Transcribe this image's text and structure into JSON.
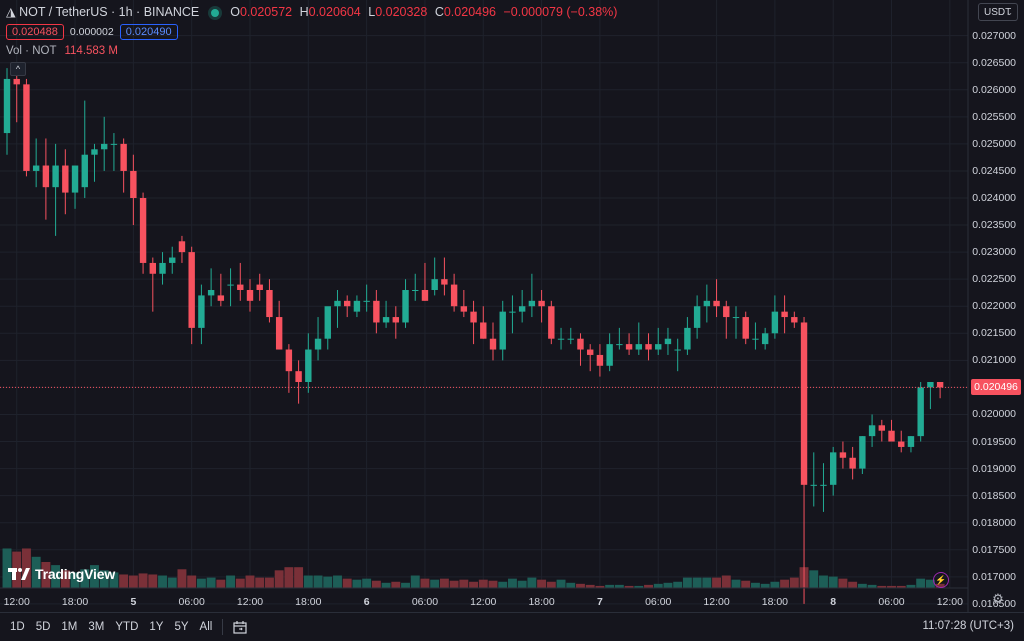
{
  "header": {
    "symbol": "NOT / TetherUS · 1h · BINANCE",
    "open_label": "O",
    "open": "0.020572",
    "high_label": "H",
    "high": "0.020604",
    "low_label": "L",
    "low": "0.020328",
    "close_label": "C",
    "close": "0.020496",
    "change": "−0.000079 (−0.38%)"
  },
  "bid": "0.020488",
  "spread": "0.000002",
  "ask": "0.020490",
  "volume": {
    "label": "Vol · NOT",
    "value": "114.583 M"
  },
  "currency": "USDT",
  "last_price_label": "0.020496",
  "brand": "TradingView",
  "time_ranges": [
    "1D",
    "5D",
    "1M",
    "3M",
    "YTD",
    "1Y",
    "5Y",
    "All"
  ],
  "clock": "11:07:28 (UTC+3)",
  "colors": {
    "up": "#22ab94",
    "down": "#f7525f",
    "background": "#15151d",
    "up_volume": "#1d5e57",
    "down_volume": "#7a3038"
  },
  "chart_data": {
    "type": "candlestick",
    "y_ticks": [
      "0.027000",
      "0.026500",
      "0.026000",
      "0.025500",
      "0.025000",
      "0.024500",
      "0.024000",
      "0.023500",
      "0.023000",
      "0.022500",
      "0.022000",
      "0.021500",
      "0.021000",
      "0.020500",
      "0.020000",
      "0.019500",
      "0.019000",
      "0.018500",
      "0.018000",
      "0.017500",
      "0.017000",
      "0.016500"
    ],
    "ylim": [
      0.01635,
      0.0274
    ],
    "x_ticks": [
      {
        "label": "12:00",
        "i": 1,
        "day": false
      },
      {
        "label": "18:00",
        "i": 7,
        "day": false
      },
      {
        "label": "5",
        "i": 13,
        "day": true
      },
      {
        "label": "06:00",
        "i": 19,
        "day": false
      },
      {
        "label": "12:00",
        "i": 25,
        "day": false
      },
      {
        "label": "18:00",
        "i": 31,
        "day": false
      },
      {
        "label": "6",
        "i": 37,
        "day": true
      },
      {
        "label": "06:00",
        "i": 43,
        "day": false
      },
      {
        "label": "12:00",
        "i": 49,
        "day": false
      },
      {
        "label": "18:00",
        "i": 55,
        "day": false
      },
      {
        "label": "7",
        "i": 61,
        "day": true
      },
      {
        "label": "06:00",
        "i": 67,
        "day": false
      },
      {
        "label": "12:00",
        "i": 73,
        "day": false
      },
      {
        "label": "18:00",
        "i": 79,
        "day": false
      },
      {
        "label": "8",
        "i": 85,
        "day": true
      },
      {
        "label": "06:00",
        "i": 91,
        "day": false
      },
      {
        "label": "12:00",
        "i": 97,
        "day": false
      }
    ],
    "ohlc": [
      [
        0.0252,
        0.0264,
        0.0248,
        0.0262
      ],
      [
        0.0262,
        0.0265,
        0.0254,
        0.0261
      ],
      [
        0.0261,
        0.0262,
        0.0244,
        0.0245
      ],
      [
        0.0245,
        0.0251,
        0.0242,
        0.0246
      ],
      [
        0.0246,
        0.0251,
        0.0236,
        0.0242
      ],
      [
        0.0242,
        0.025,
        0.0233,
        0.0246
      ],
      [
        0.0246,
        0.0249,
        0.0237,
        0.0241
      ],
      [
        0.0241,
        0.0246,
        0.0238,
        0.0246
      ],
      [
        0.0242,
        0.0258,
        0.024,
        0.0248
      ],
      [
        0.0248,
        0.025,
        0.0243,
        0.0249
      ],
      [
        0.0249,
        0.0255,
        0.0245,
        0.025
      ],
      [
        0.025,
        0.0252,
        0.0245,
        0.025
      ],
      [
        0.025,
        0.0251,
        0.0241,
        0.0245
      ],
      [
        0.0245,
        0.0248,
        0.0235,
        0.024
      ],
      [
        0.024,
        0.0241,
        0.0226,
        0.0228
      ],
      [
        0.0228,
        0.0229,
        0.0219,
        0.0226
      ],
      [
        0.0226,
        0.023,
        0.0224,
        0.0228
      ],
      [
        0.0228,
        0.0231,
        0.0226,
        0.0229
      ],
      [
        0.0232,
        0.0233,
        0.0228,
        0.023
      ],
      [
        0.023,
        0.0231,
        0.0213,
        0.0216
      ],
      [
        0.0216,
        0.0224,
        0.0213,
        0.0222
      ],
      [
        0.0222,
        0.0227,
        0.022,
        0.0223
      ],
      [
        0.0222,
        0.0226,
        0.022,
        0.0221
      ],
      [
        0.0224,
        0.0227,
        0.022,
        0.0224
      ],
      [
        0.0224,
        0.0228,
        0.0221,
        0.0223
      ],
      [
        0.0223,
        0.0225,
        0.0219,
        0.0221
      ],
      [
        0.0224,
        0.0226,
        0.0221,
        0.0223
      ],
      [
        0.0223,
        0.0225,
        0.0217,
        0.0218
      ],
      [
        0.0218,
        0.0221,
        0.0212,
        0.0212
      ],
      [
        0.0212,
        0.0213,
        0.0204,
        0.0208
      ],
      [
        0.0208,
        0.021,
        0.0202,
        0.0206
      ],
      [
        0.0206,
        0.0215,
        0.0204,
        0.0212
      ],
      [
        0.0212,
        0.0218,
        0.021,
        0.0214
      ],
      [
        0.0214,
        0.0219,
        0.0212,
        0.022
      ],
      [
        0.022,
        0.0223,
        0.0216,
        0.0221
      ],
      [
        0.0221,
        0.0222,
        0.0218,
        0.022
      ],
      [
        0.0219,
        0.0222,
        0.0218,
        0.0221
      ],
      [
        0.0221,
        0.0224,
        0.0219,
        0.0221
      ],
      [
        0.0221,
        0.0223,
        0.0215,
        0.0217
      ],
      [
        0.0217,
        0.0221,
        0.0216,
        0.0218
      ],
      [
        0.0218,
        0.022,
        0.0214,
        0.0217
      ],
      [
        0.0217,
        0.0225,
        0.0216,
        0.0223
      ],
      [
        0.0223,
        0.0226,
        0.0221,
        0.0223
      ],
      [
        0.0223,
        0.0228,
        0.0221,
        0.0221
      ],
      [
        0.0223,
        0.0229,
        0.0222,
        0.0225
      ],
      [
        0.0225,
        0.0229,
        0.0222,
        0.0224
      ],
      [
        0.0224,
        0.0226,
        0.0219,
        0.022
      ],
      [
        0.022,
        0.0223,
        0.0218,
        0.0219
      ],
      [
        0.0219,
        0.0221,
        0.0213,
        0.0217
      ],
      [
        0.0217,
        0.022,
        0.0214,
        0.0214
      ],
      [
        0.0214,
        0.0217,
        0.021,
        0.0212
      ],
      [
        0.0212,
        0.0221,
        0.021,
        0.0219
      ],
      [
        0.0219,
        0.0222,
        0.0215,
        0.0219
      ],
      [
        0.0219,
        0.0223,
        0.0217,
        0.022
      ],
      [
        0.022,
        0.0226,
        0.0218,
        0.0221
      ],
      [
        0.0221,
        0.0223,
        0.0217,
        0.022
      ],
      [
        0.022,
        0.0221,
        0.0213,
        0.0214
      ],
      [
        0.0214,
        0.0216,
        0.0212,
        0.0214
      ],
      [
        0.0214,
        0.0216,
        0.0213,
        0.0214
      ],
      [
        0.0214,
        0.0215,
        0.0209,
        0.0212
      ],
      [
        0.0212,
        0.0213,
        0.0208,
        0.0211
      ],
      [
        0.0211,
        0.0213,
        0.0207,
        0.0209
      ],
      [
        0.0209,
        0.0215,
        0.0208,
        0.0213
      ],
      [
        0.0213,
        0.0216,
        0.0212,
        0.0213
      ],
      [
        0.0213,
        0.0215,
        0.0211,
        0.0212
      ],
      [
        0.0212,
        0.0217,
        0.0211,
        0.0213
      ],
      [
        0.0213,
        0.0215,
        0.021,
        0.0212
      ],
      [
        0.0212,
        0.0216,
        0.0211,
        0.0213
      ],
      [
        0.0213,
        0.0216,
        0.0211,
        0.0214
      ],
      [
        0.0212,
        0.0214,
        0.0208,
        0.0212
      ],
      [
        0.0212,
        0.0218,
        0.0211,
        0.0216
      ],
      [
        0.0216,
        0.0222,
        0.0214,
        0.022
      ],
      [
        0.022,
        0.0224,
        0.0217,
        0.0221
      ],
      [
        0.0221,
        0.0225,
        0.0218,
        0.022
      ],
      [
        0.022,
        0.0221,
        0.0214,
        0.0218
      ],
      [
        0.0218,
        0.022,
        0.0214,
        0.0218
      ],
      [
        0.0218,
        0.0219,
        0.0213,
        0.0214
      ],
      [
        0.0214,
        0.0217,
        0.0212,
        0.0214
      ],
      [
        0.0213,
        0.0216,
        0.0212,
        0.0215
      ],
      [
        0.0215,
        0.0222,
        0.0214,
        0.0219
      ],
      [
        0.0219,
        0.0222,
        0.0215,
        0.0218
      ],
      [
        0.0218,
        0.0219,
        0.0216,
        0.0217
      ],
      [
        0.0217,
        0.0218,
        0.0165,
        0.0187
      ],
      [
        0.0187,
        0.0193,
        0.0183,
        0.0187
      ],
      [
        0.0187,
        0.0191,
        0.0182,
        0.0187
      ],
      [
        0.0187,
        0.0194,
        0.0185,
        0.0193
      ],
      [
        0.0193,
        0.0195,
        0.019,
        0.0192
      ],
      [
        0.0192,
        0.0194,
        0.0188,
        0.019
      ],
      [
        0.019,
        0.0196,
        0.0189,
        0.0196
      ],
      [
        0.0196,
        0.02,
        0.0194,
        0.0198
      ],
      [
        0.0198,
        0.0199,
        0.0195,
        0.0197
      ],
      [
        0.0197,
        0.0199,
        0.0195,
        0.0195
      ],
      [
        0.0195,
        0.0197,
        0.0193,
        0.0194
      ],
      [
        0.0194,
        0.0196,
        0.0193,
        0.0196
      ],
      [
        0.0196,
        0.0206,
        0.0195,
        0.0205
      ],
      [
        0.0205,
        0.0206,
        0.0201,
        0.0206
      ],
      [
        0.0206,
        0.0206,
        0.0203,
        0.0205
      ]
    ],
    "volume_scale": [
      0,
      100
    ],
    "volume": [
      38,
      35,
      38,
      30,
      25,
      22,
      17,
      15,
      18,
      22,
      17,
      15,
      13,
      12,
      14,
      13,
      12,
      10,
      18,
      12,
      9,
      10,
      8,
      12,
      9,
      12,
      10,
      10,
      17,
      20,
      20,
      12,
      12,
      11,
      12,
      9,
      8,
      9,
      7,
      5,
      6,
      5,
      12,
      9,
      8,
      9,
      7,
      8,
      6,
      8,
      7,
      6,
      9,
      7,
      10,
      8,
      6,
      8,
      5,
      4,
      3,
      2,
      3,
      3,
      2,
      2,
      3,
      4,
      5,
      6,
      10,
      10,
      10,
      10,
      12,
      8,
      7,
      5,
      4,
      6,
      8,
      10,
      20,
      17,
      12,
      11,
      9,
      6,
      4,
      3,
      2,
      2,
      2,
      3,
      9,
      8,
      4
    ]
  }
}
